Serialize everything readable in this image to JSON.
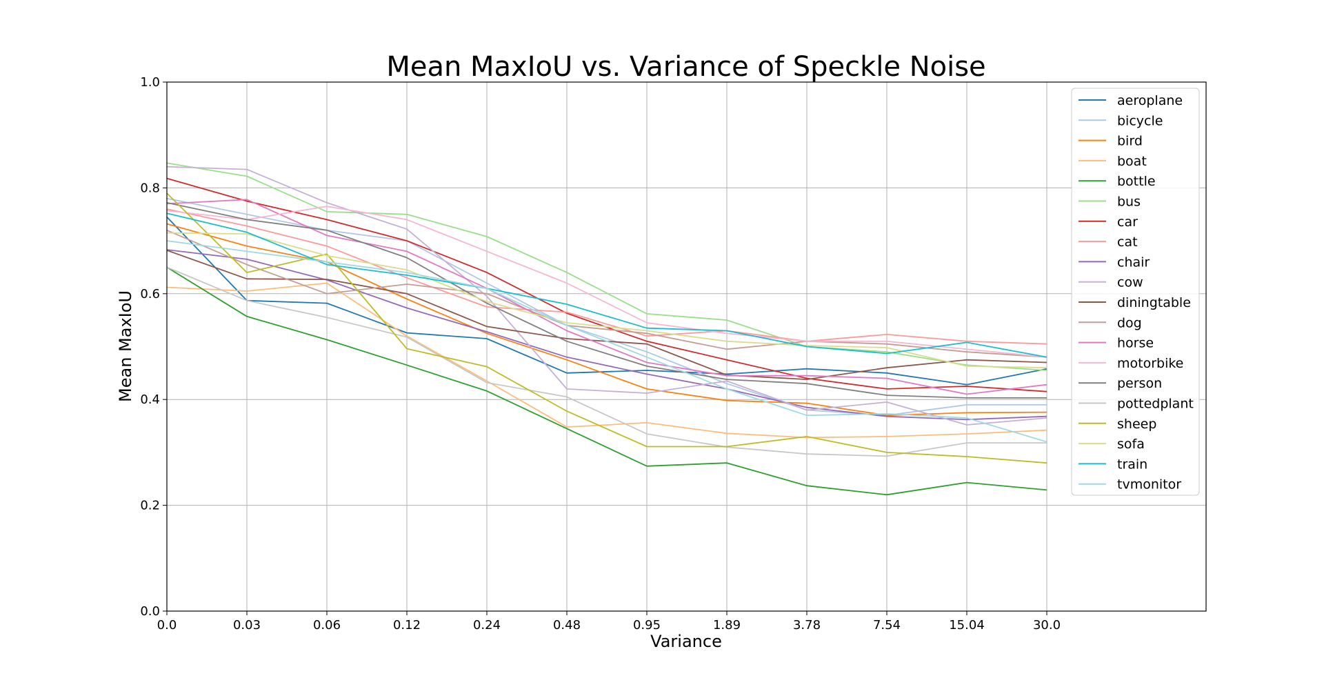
{
  "chart_data": {
    "type": "line",
    "title": "Mean MaxIoU vs. Variance of Speckle Noise",
    "xlabel": "Variance",
    "ylabel": "Mean MaxIoU",
    "x": [
      "0.0",
      "0.03",
      "0.06",
      "0.12",
      "0.24",
      "0.48",
      "0.95",
      "1.89",
      "3.78",
      "7.54",
      "15.04",
      "30.0"
    ],
    "ylim": [
      0.0,
      1.0
    ],
    "yticks": [
      "0.0",
      "0.2",
      "0.4",
      "0.6",
      "0.8",
      "1.0"
    ],
    "grid": true,
    "legend_position": "top-right",
    "series": [
      {
        "name": "aeroplane",
        "color": "#1f77b4",
        "values": [
          0.745,
          0.587,
          0.582,
          0.526,
          0.515,
          0.45,
          0.455,
          0.448,
          0.458,
          0.45,
          0.428,
          0.458
        ]
      },
      {
        "name": "bicycle",
        "color": "#aec7e8",
        "values": [
          0.78,
          0.75,
          0.72,
          0.7,
          0.62,
          0.54,
          0.49,
          0.43,
          0.38,
          0.37,
          0.39,
          0.39
        ]
      },
      {
        "name": "bird",
        "color": "#ff7f0e",
        "values": [
          0.732,
          0.69,
          0.66,
          0.59,
          0.525,
          0.475,
          0.42,
          0.398,
          0.393,
          0.37,
          0.375,
          0.376
        ]
      },
      {
        "name": "boat",
        "color": "#ffbb78",
        "values": [
          0.612,
          0.605,
          0.62,
          0.52,
          0.435,
          0.348,
          0.356,
          0.336,
          0.328,
          0.33,
          0.335,
          0.342
        ]
      },
      {
        "name": "bottle",
        "color": "#2ca02c",
        "values": [
          0.65,
          0.557,
          0.513,
          0.465,
          0.416,
          0.345,
          0.274,
          0.28,
          0.237,
          0.22,
          0.243,
          0.229
        ]
      },
      {
        "name": "bus",
        "color": "#98df8a",
        "values": [
          0.847,
          0.822,
          0.755,
          0.75,
          0.708,
          0.64,
          0.562,
          0.55,
          0.5,
          0.49,
          0.465,
          0.455
        ]
      },
      {
        "name": "car",
        "color": "#d62728",
        "values": [
          0.818,
          0.775,
          0.74,
          0.7,
          0.64,
          0.563,
          0.51,
          0.475,
          0.44,
          0.42,
          0.425,
          0.415
        ]
      },
      {
        "name": "cat",
        "color": "#ff9896",
        "values": [
          0.76,
          0.728,
          0.69,
          0.63,
          0.575,
          0.565,
          0.52,
          0.53,
          0.51,
          0.523,
          0.51,
          0.505
        ]
      },
      {
        "name": "chair",
        "color": "#9467bd",
        "values": [
          0.683,
          0.665,
          0.626,
          0.573,
          0.528,
          0.48,
          0.448,
          0.42,
          0.385,
          0.368,
          0.362,
          0.368
        ]
      },
      {
        "name": "cow",
        "color": "#c5b0d5",
        "values": [
          0.84,
          0.835,
          0.772,
          0.722,
          0.595,
          0.42,
          0.412,
          0.435,
          0.38,
          0.395,
          0.352,
          0.365
        ]
      },
      {
        "name": "diningtable",
        "color": "#8c564b",
        "values": [
          0.682,
          0.628,
          0.627,
          0.6,
          0.538,
          0.515,
          0.505,
          0.446,
          0.438,
          0.46,
          0.475,
          0.47
        ]
      },
      {
        "name": "dog",
        "color": "#c49c94",
        "values": [
          0.72,
          0.655,
          0.6,
          0.618,
          0.6,
          0.54,
          0.525,
          0.495,
          0.51,
          0.505,
          0.49,
          0.48
        ]
      },
      {
        "name": "horse",
        "color": "#e377c2",
        "values": [
          0.77,
          0.778,
          0.71,
          0.68,
          0.61,
          0.53,
          0.47,
          0.445,
          0.445,
          0.44,
          0.41,
          0.428
        ]
      },
      {
        "name": "motorbike",
        "color": "#f7b6d2",
        "values": [
          0.757,
          0.74,
          0.765,
          0.74,
          0.68,
          0.62,
          0.545,
          0.525,
          0.51,
          0.51,
          0.495,
          0.48
        ]
      },
      {
        "name": "person",
        "color": "#7f7f7f",
        "values": [
          0.772,
          0.74,
          0.72,
          0.668,
          0.582,
          0.51,
          0.463,
          0.438,
          0.43,
          0.408,
          0.403,
          0.403
        ]
      },
      {
        "name": "pottedplant",
        "color": "#c7c7c7",
        "values": [
          0.65,
          0.587,
          0.555,
          0.518,
          0.432,
          0.405,
          0.335,
          0.31,
          0.297,
          0.293,
          0.318,
          0.318
        ]
      },
      {
        "name": "sheep",
        "color": "#bcbd22",
        "values": [
          0.79,
          0.64,
          0.675,
          0.496,
          0.462,
          0.378,
          0.311,
          0.311,
          0.33,
          0.3,
          0.292,
          0.28
        ]
      },
      {
        "name": "sofa",
        "color": "#dbdb8d",
        "values": [
          0.715,
          0.713,
          0.672,
          0.645,
          0.585,
          0.545,
          0.53,
          0.51,
          0.502,
          0.498,
          0.463,
          0.46
        ]
      },
      {
        "name": "train",
        "color": "#17becf",
        "values": [
          0.752,
          0.716,
          0.655,
          0.635,
          0.61,
          0.58,
          0.535,
          0.53,
          0.5,
          0.487,
          0.508,
          0.48
        ]
      },
      {
        "name": "tvmonitor",
        "color": "#9edae5",
        "values": [
          0.7,
          0.68,
          0.66,
          0.64,
          0.61,
          0.54,
          0.48,
          0.42,
          0.37,
          0.373,
          0.365,
          0.32
        ]
      }
    ]
  }
}
